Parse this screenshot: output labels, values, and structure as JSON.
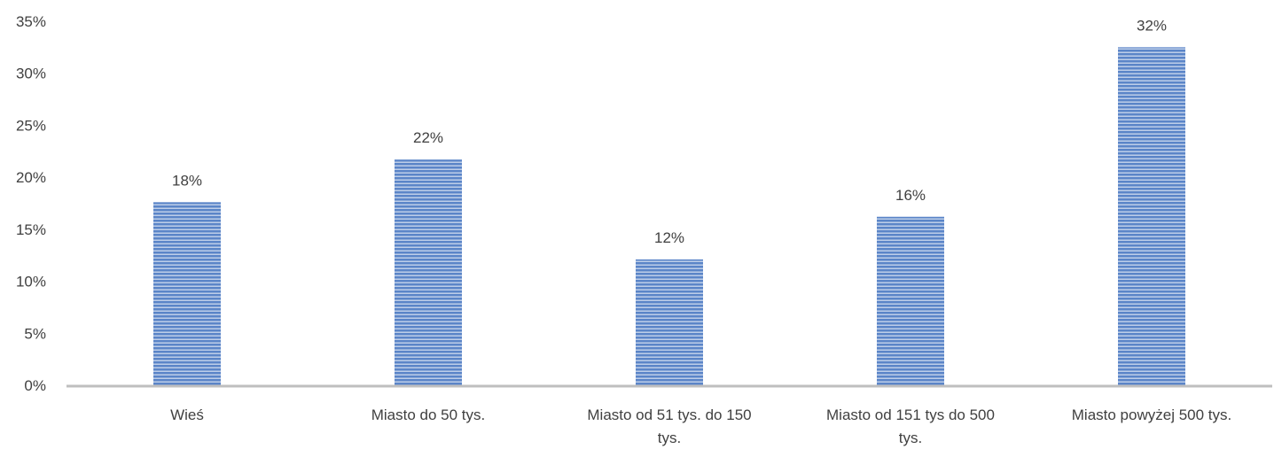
{
  "chart_data": {
    "type": "bar",
    "categories": [
      [
        "Wieś"
      ],
      [
        "Miasto do 50 tys."
      ],
      [
        "Miasto od 51 tys. do 150",
        "tys."
      ],
      [
        "Miasto od 151 tys do 500",
        "tys."
      ],
      [
        "Miasto powyżej 500 tys."
      ]
    ],
    "values": [
      17.6,
      21.7,
      12.1,
      16.2,
      32.5
    ],
    "data_labels": [
      "18%",
      "22%",
      "12%",
      "16%",
      "32%"
    ],
    "ylim": [
      0,
      35
    ],
    "yticks": [
      0,
      5,
      10,
      15,
      20,
      25,
      30,
      35
    ],
    "ytick_labels": [
      "0%",
      "5%",
      "10%",
      "15%",
      "20%",
      "25%",
      "30%",
      "35%"
    ],
    "grid": false,
    "legend": "none",
    "bar_fill": "#5b85c8",
    "bar_stripe": "#ffffff",
    "axis_color": "#bfbfbf"
  }
}
